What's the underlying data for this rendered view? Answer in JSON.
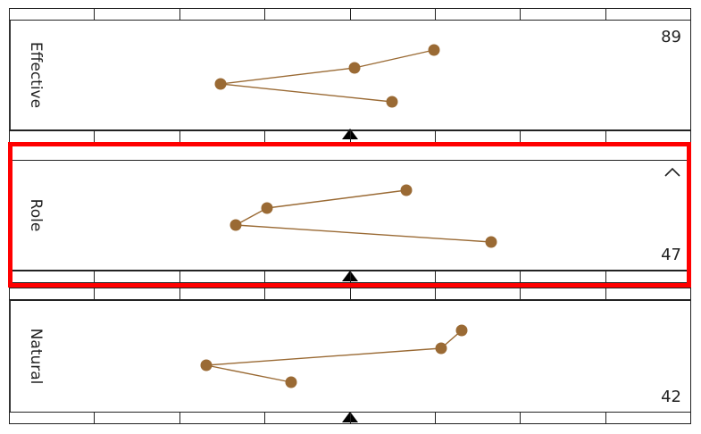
{
  "panels": [
    {
      "label": "Effective",
      "value": "89",
      "points": [
        [
          486,
          56
        ],
        [
          397,
          76
        ],
        [
          247,
          94
        ],
        [
          439,
          114
        ]
      ],
      "value_position": "top"
    },
    {
      "label": "Role",
      "value": "47",
      "points": [
        [
          455,
          213
        ],
        [
          299,
          233
        ],
        [
          264,
          252
        ],
        [
          550,
          271
        ]
      ],
      "value_position": "bottom",
      "collapse_icon": "chevron-up-icon"
    },
    {
      "label": "Natural",
      "value": "42",
      "points": [
        [
          517,
          370
        ],
        [
          494,
          390
        ],
        [
          231,
          409
        ],
        [
          326,
          428
        ]
      ],
      "value_position": "bottom"
    }
  ],
  "colors": {
    "series": "#9a6a34",
    "highlight": "#ff0000"
  }
}
